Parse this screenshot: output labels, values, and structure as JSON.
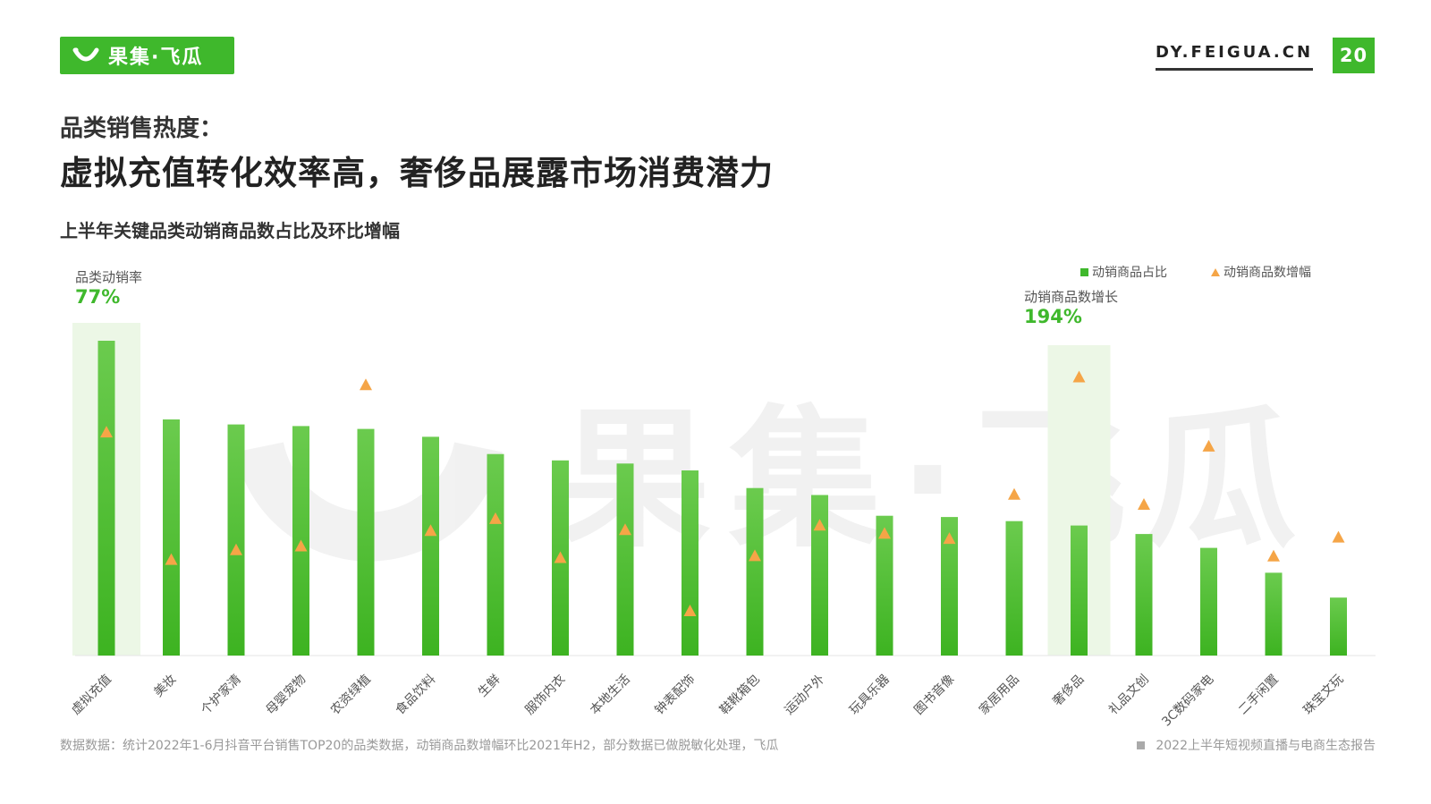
{
  "header": {
    "logo_text": "果集·飞瓜",
    "site_url": "DY.FEIGUA.CN",
    "page_number": "20",
    "brand_color": "#3fb82c"
  },
  "titles": {
    "small": "品类销售热度：",
    "large": "虚拟充值转化效率高，奢侈品展露市场消费潜力"
  },
  "callouts": {
    "left_label": "品类动销率",
    "left_value": "77%",
    "right_label": "动销商品数增长",
    "right_value": "194%"
  },
  "legend": {
    "bar_label": "动销商品占比",
    "marker_label": "动销商品数增幅"
  },
  "watermark": {
    "text": "果集·飞瓜"
  },
  "footer": {
    "source": "数据数据：统计2022年1-6月抖音平台销售TOP20的品类数据，动销商品数增幅环比2021年H2，部分数据已做脱敏化处理，飞瓜",
    "report": "2022上半年短视频直播与电商生态报告"
  },
  "chart_data": {
    "type": "bar",
    "title": "上半年关键品类动销商品数占比及环比增幅",
    "categories": [
      "虚拟充值",
      "美妆",
      "个护家清",
      "母婴宠物",
      "农资绿植",
      "食品饮料",
      "生鲜",
      "服饰内衣",
      "本地生活",
      "钟表配饰",
      "鞋靴箱包",
      "运动户外",
      "玩具乐器",
      "图书音像",
      "家居用品",
      "奢侈品",
      "礼品文创",
      "3C数码家电",
      "二手闲置",
      "珠宝文玩"
    ],
    "series": [
      {
        "name": "动销商品占比",
        "kind": "bar",
        "color": "#44b82a",
        "values": [
          100,
          75,
          73.4,
          72.9,
          72,
          69.5,
          64,
          62,
          61,
          58.8,
          53.2,
          51,
          44.4,
          44,
          42.7,
          41.3,
          38.6,
          34.2,
          26.3,
          18.4
        ]
      },
      {
        "name": "动销商品数增幅",
        "kind": "marker",
        "color": "#f5a547",
        "values": [
          71,
          30.5,
          33.6,
          34.8,
          86,
          39.7,
          43.5,
          31.1,
          40,
          14.2,
          31.7,
          41.4,
          38.8,
          37.2,
          51.2,
          88.5,
          48,
          66.5,
          31.6,
          37.6
        ]
      }
    ],
    "highlighted_categories": [
      "虚拟充值",
      "奢侈品"
    ],
    "ylim": [
      0,
      100
    ],
    "grid": false,
    "legend_position": "top-right"
  }
}
